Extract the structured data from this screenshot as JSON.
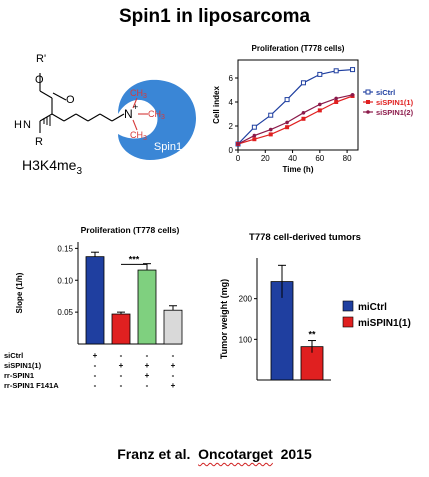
{
  "title": "Spin1 in liposarcoma",
  "molecule": {
    "label_r_prime": "R'",
    "label_o": "O",
    "label_n": "N",
    "label_h": "H",
    "label_r": "R",
    "label_nplus": "N",
    "label_plus": "+",
    "methyl": "CH",
    "methyl_sub": "3",
    "protein": "Spin1",
    "caption_main": "H3K4me",
    "caption_sub": "3"
  },
  "colors": {
    "spin1_blue": "#3a86d6",
    "methyl_red": "#d63a3a",
    "ctrl_blue": "#1f3fa0",
    "red": "#e02020",
    "green": "#7fd07f",
    "gray": "#d9d9d9",
    "sispin1_2": "#8b1a4a"
  },
  "chart_data": [
    {
      "type": "line",
      "title": "Proliferation (T778 cells)",
      "xlabel": "Time (h)",
      "ylabel": "Cell index",
      "xlim": [
        0,
        88
      ],
      "ylim": [
        0,
        7.5
      ],
      "xticks": [
        "0",
        "20",
        "40",
        "60",
        "80"
      ],
      "yticks": [
        "0",
        "2",
        "4",
        "6"
      ],
      "legend_position": "right",
      "series": [
        {
          "name": "siCtrl",
          "color": "#1f3fa0",
          "marker": "square-open",
          "x": [
            0,
            12,
            24,
            36,
            48,
            60,
            72,
            84
          ],
          "y": [
            0.5,
            1.9,
            2.9,
            4.2,
            5.6,
            6.3,
            6.6,
            6.7
          ]
        },
        {
          "name": "siSPIN1(1)",
          "color": "#e02020",
          "marker": "square-filled",
          "x": [
            0,
            12,
            24,
            36,
            48,
            60,
            72,
            84
          ],
          "y": [
            0.5,
            0.9,
            1.3,
            1.9,
            2.6,
            3.3,
            4.0,
            4.5
          ]
        },
        {
          "name": "siSPIN1(2)",
          "color": "#8b1a4a",
          "marker": "circle",
          "x": [
            0,
            12,
            24,
            36,
            48,
            60,
            72,
            84
          ],
          "y": [
            0.5,
            1.2,
            1.7,
            2.3,
            3.1,
            3.8,
            4.3,
            4.6
          ]
        }
      ]
    },
    {
      "type": "bar",
      "title": "Proliferation (T778 cells)",
      "ylabel": "Slope (1/h)",
      "ylim": [
        0,
        0.16
      ],
      "yticks": [
        "0.05",
        "0.10",
        "0.15"
      ],
      "values": [
        0.137,
        0.047,
        0.116,
        0.053
      ],
      "errors": [
        0.007,
        0.003,
        0.01,
        0.007
      ],
      "colors": [
        "#1f3fa0",
        "#e02020",
        "#7fd07f",
        "#d9d9d9"
      ],
      "significance": "***",
      "condition_rows": [
        {
          "label": "siCtrl",
          "marks": [
            "+",
            "-",
            "-",
            "-"
          ]
        },
        {
          "label": "siSPIN1(1)",
          "marks": [
            "-",
            "+",
            "+",
            "+"
          ]
        },
        {
          "label": "rr-SPIN1",
          "marks": [
            "-",
            "-",
            "+",
            "-"
          ]
        },
        {
          "label": "rr-SPIN1 F141A",
          "marks": [
            "-",
            "-",
            "-",
            "+"
          ]
        }
      ]
    },
    {
      "type": "bar",
      "title": "T778 cell-derived tumors",
      "ylabel": "Tumor weight (mg)",
      "ylim": [
        0,
        300
      ],
      "yticks": [
        "100",
        "200"
      ],
      "categories": [
        "miCtrl",
        "miSPIN1(1)"
      ],
      "values": [
        242,
        82
      ],
      "errors": [
        40,
        15
      ],
      "colors": [
        "#1f3fa0",
        "#e02020"
      ],
      "significance": "**",
      "legend_position": "right"
    }
  ],
  "footer": {
    "authors": "Franz et al.",
    "journal": "Oncotarget",
    "year": "2015"
  }
}
